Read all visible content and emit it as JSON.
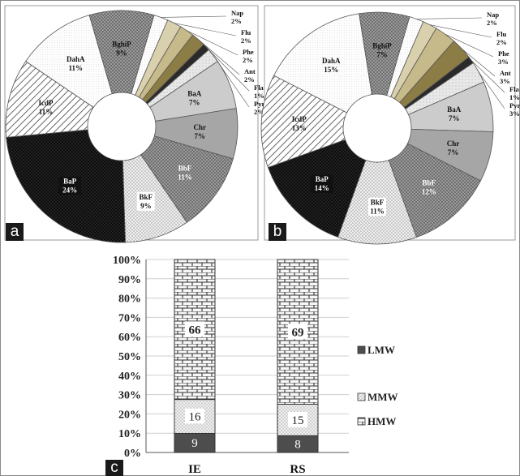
{
  "panel_labels": {
    "a": "a",
    "b": "b",
    "c": "c"
  },
  "colors": {
    "Nap": "#e6e6e6",
    "Flu": "#d9d0ae",
    "Phe": "#c6b98a",
    "Ant": "#8c7c45",
    "Fla": "#2a2a2a",
    "Pyr": "#f2f2f2",
    "BaA": "#cccccc",
    "Chr": "#a6a6a6",
    "BbF": "#6e6e6e",
    "BkF": "#ececec",
    "BaP": "#111111",
    "IcdP": "#ffffff",
    "DahA": "#fbfbfb",
    "BghiP": "#8a8a8a",
    "LMW": "#4d4d4d",
    "MMW": "#e9e9e9",
    "HMW": "#f4f4f4"
  },
  "chart_data": [
    {
      "type": "pie",
      "panel": "a",
      "title": "",
      "labels": [
        "Nap",
        "Flu",
        "Phe",
        "Ant",
        "Fla",
        "Pyr",
        "BaA",
        "Chr",
        "BbF",
        "BkF",
        "BaP",
        "IcdP",
        "DahA",
        "BghiP"
      ],
      "values": [
        2,
        2,
        2,
        2,
        1,
        2,
        7,
        7,
        11,
        9,
        24,
        11,
        11,
        9
      ],
      "value_labels": [
        "2%",
        "2%",
        "2%",
        "2%",
        "1%",
        "2%",
        "7%",
        "7%",
        "11%",
        "9%",
        "24%",
        "11%",
        "11%",
        "9%"
      ]
    },
    {
      "type": "pie",
      "panel": "b",
      "title": "",
      "labels": [
        "Nap",
        "Flu",
        "Phe",
        "Ant",
        "Fla",
        "Pyr",
        "BaA",
        "Chr",
        "BbF",
        "BkF",
        "BaP",
        "IcdP",
        "DahA",
        "BghiP"
      ],
      "values": [
        2,
        2,
        3,
        3,
        1,
        3,
        7,
        7,
        12,
        11,
        14,
        13,
        15,
        7
      ],
      "value_labels": [
        "2%",
        "2%",
        "3%",
        "3%",
        "1%",
        "3%",
        "7%",
        "7%",
        "12%",
        "11%",
        "14%",
        "13%",
        "15%",
        "7%"
      ]
    },
    {
      "type": "bar",
      "stacked": true,
      "panel": "c",
      "categories": [
        "IE",
        "RS"
      ],
      "series": [
        {
          "name": "LMW",
          "values": [
            9,
            8
          ]
        },
        {
          "name": "MMW",
          "values": [
            16,
            15
          ]
        },
        {
          "name": "HMW",
          "values": [
            66,
            69
          ]
        }
      ],
      "normalized": true,
      "yticks": [
        "0%",
        "10%",
        "20%",
        "30%",
        "40%",
        "50%",
        "60%",
        "70%",
        "80%",
        "90%",
        "100%"
      ],
      "ylim": [
        0,
        100
      ],
      "legend_position": "right",
      "grid": true
    }
  ]
}
